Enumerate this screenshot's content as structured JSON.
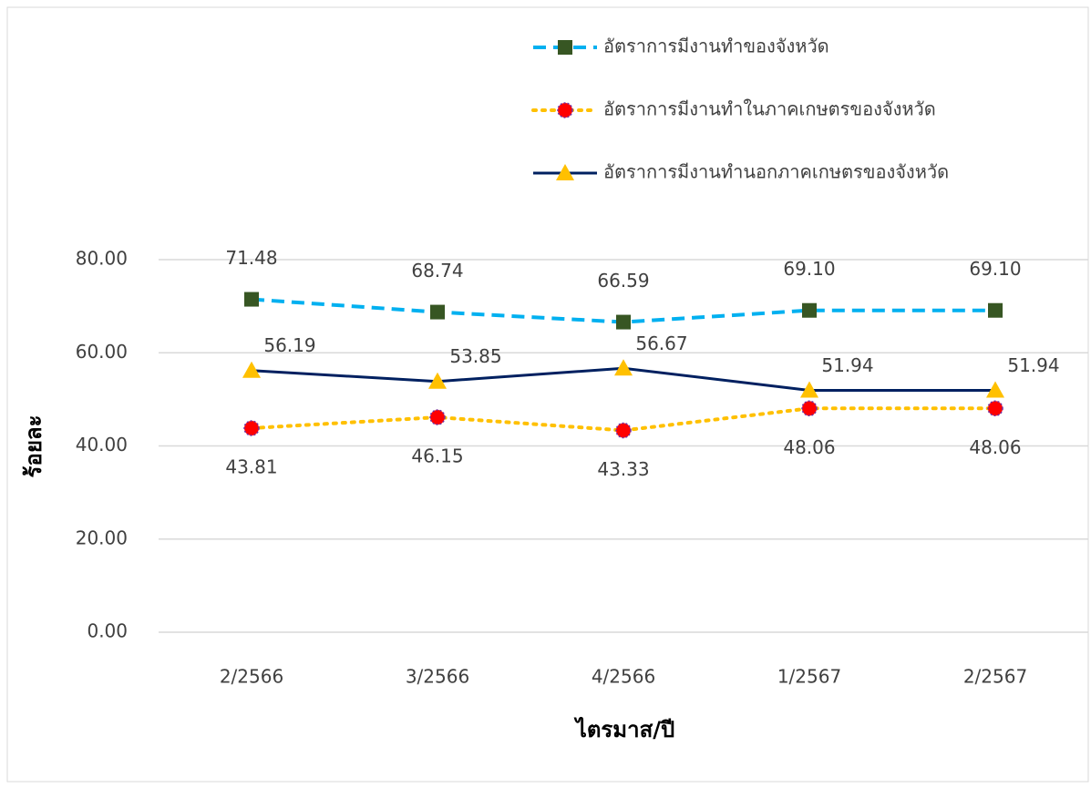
{
  "chart_data": {
    "type": "line",
    "x_label": "ไตรมาส/ปี",
    "y_label": "ร้อยละ",
    "categories": [
      "2/2566",
      "3/2566",
      "4/2566",
      "1/2567",
      "2/2567"
    ],
    "ylim": [
      0,
      80
    ],
    "yticks": [
      {
        "value": 0,
        "label": "0.00"
      },
      {
        "value": 20,
        "label": "20.00"
      },
      {
        "value": 40,
        "label": "40.00"
      },
      {
        "value": 60,
        "label": "60.00"
      },
      {
        "value": 80,
        "label": "80.00"
      }
    ],
    "grid": true,
    "legend": "top-right",
    "series": [
      {
        "name": "อัตราการมีงานทำของจังหวัด",
        "color": "#00b0f0",
        "line_style": "dashed",
        "marker": "square",
        "marker_color": "#375623",
        "label_position": "above",
        "values": [
          71.48,
          68.74,
          66.59,
          69.1,
          69.1
        ],
        "value_labels": [
          "71.48",
          "68.74",
          "66.59",
          "69.10",
          "69.10"
        ]
      },
      {
        "name": "อัตราการมีงานทำในภาคเกษตรของจังหวัด",
        "color": "#ffc000",
        "line_style": "dotted",
        "marker": "circle",
        "marker_color": "#ff0000",
        "label_position": "below",
        "values": [
          43.81,
          46.15,
          43.33,
          48.06,
          48.06
        ],
        "value_labels": [
          "43.81",
          "46.15",
          "43.33",
          "48.06",
          "48.06"
        ]
      },
      {
        "name": "อัตราการมีงานทำนอกภาคเกษตรของจังหวัด",
        "color": "#002060",
        "line_style": "solid",
        "marker": "triangle",
        "marker_color": "#ffc000",
        "label_position": "right",
        "values": [
          56.19,
          53.85,
          56.67,
          51.94,
          51.94
        ],
        "value_labels": [
          "56.19",
          "53.85",
          "56.67",
          "51.94",
          "51.94"
        ]
      }
    ]
  }
}
